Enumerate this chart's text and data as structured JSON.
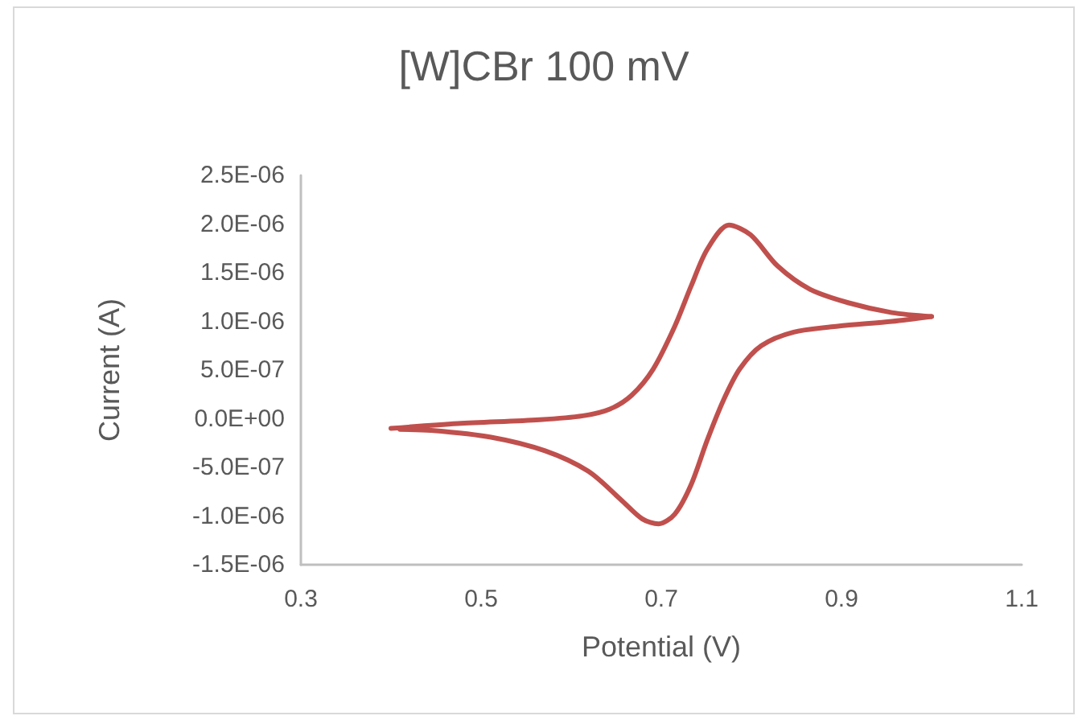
{
  "chart_data": {
    "type": "line",
    "title": "[W]CBr 100 mV",
    "xlabel": "Potential (V)",
    "ylabel": "Current (A)",
    "series": [
      {
        "color": "#c0504d",
        "x": [
          0.4,
          0.474,
          0.565,
          0.613,
          0.643,
          0.667,
          0.691,
          0.715,
          0.733,
          0.751,
          0.775,
          0.799,
          0.829,
          0.865,
          0.908,
          0.956,
          1.0
        ],
        "values": [
          -1e-07,
          -5e-08,
          -1e-08,
          3e-08,
          1e-07,
          2.4e-07,
          5.1e-07,
          9.5e-07,
          1.36e-06,
          1.74e-06,
          1.99e-06,
          1.89e-06,
          1.57e-06,
          1.33e-06,
          1.19e-06,
          1.09e-06,
          1.05e-06
        ]
      },
      {
        "color": "#c0504d",
        "x": [
          1.0,
          0.956,
          0.896,
          0.847,
          0.811,
          0.787,
          0.769,
          0.751,
          0.733,
          0.715,
          0.697,
          0.679,
          0.655,
          0.619,
          0.571,
          0.511,
          0.444,
          0.41
        ],
        "values": [
          1.05e-06,
          1e-06,
          9.5e-07,
          8.9e-07,
          7.5e-07,
          5.1e-07,
          1.9e-07,
          -2.2e-07,
          -6.8e-07,
          -9.8e-07,
          -1.08e-06,
          -1.03e-06,
          -8.3e-07,
          -5.4e-07,
          -3.3e-07,
          -1.9e-07,
          -1.2e-07,
          -1.1e-07
        ]
      }
    ],
    "xlim": [
      0.3,
      1.1
    ],
    "xticks": [
      0.3,
      0.5,
      0.7,
      0.9,
      1.1
    ],
    "ylim": [
      -1.5e-06,
      2.5e-06
    ],
    "yticks": [
      {
        "value": -1.5e-06,
        "label": "-1.5E-06"
      },
      {
        "value": -1e-06,
        "label": "-1.0E-06"
      },
      {
        "value": -5e-07,
        "label": "-5.0E-07"
      },
      {
        "value": 0,
        "label": "0.0E+00"
      },
      {
        "value": 5e-07,
        "label": "5.0E-07"
      },
      {
        "value": 1e-06,
        "label": "1.0E-06"
      },
      {
        "value": 1.5e-06,
        "label": "1.5E-06"
      },
      {
        "value": 2e-06,
        "label": "2.0E-06"
      },
      {
        "value": 2.5e-06,
        "label": "2.5E-06"
      }
    ],
    "grid": false,
    "marker": "none",
    "line_style": "solid"
  }
}
